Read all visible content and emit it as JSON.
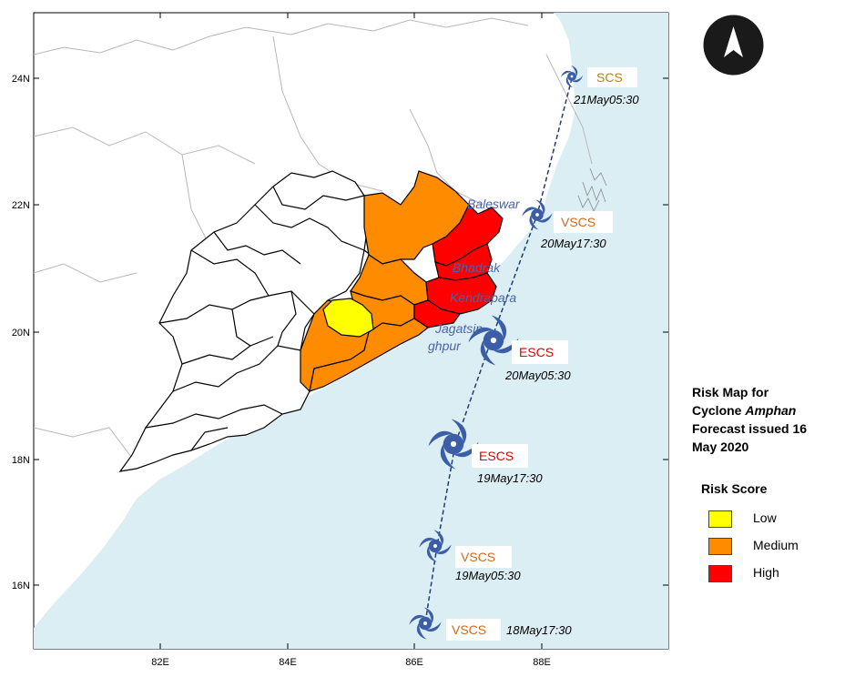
{
  "title": {
    "line1": "Risk Map for",
    "line2_prefix": "Cyclone ",
    "line2_italic": "Amphan",
    "line3": "Forecast issued 16",
    "line4": "May 2020"
  },
  "legend": {
    "title": "Risk Score",
    "items": [
      {
        "label": "Low",
        "color": "#ffff00"
      },
      {
        "label": "Medium",
        "color": "#ff8c00"
      },
      {
        "label": "High",
        "color": "#ff0000"
      }
    ]
  },
  "axes": {
    "x_ticks": [
      "82E",
      "84E",
      "86E",
      "88E"
    ],
    "y_ticks": [
      "24N",
      "22N",
      "20N",
      "18N",
      "16N"
    ]
  },
  "track": [
    {
      "category": "SCS",
      "time": "21May05:30",
      "cat_color": "#b8860b"
    },
    {
      "category": "VSCS",
      "time": "20May17:30",
      "cat_color": "#d2691e"
    },
    {
      "category": "ESCS",
      "time": "20May05:30",
      "cat_color": "#e00000"
    },
    {
      "category": "ESCS",
      "time": "19May17:30",
      "cat_color": "#e00000"
    },
    {
      "category": "VSCS",
      "time": "19May05:30",
      "cat_color": "#d2691e"
    },
    {
      "category": "VSCS",
      "time": "18May17:30",
      "cat_color": "#d2691e"
    }
  ],
  "districts": {
    "baleswar": "Baleswar",
    "bhadrak": "Bhadrak",
    "kendrapara": "Kendrapara",
    "jagatsinghpur_1": "Jagatsin",
    "jagatsinghpur_2": "ghpur"
  },
  "colors": {
    "sea": "#dbeef4",
    "land": "#ffffff",
    "cyclone": "#3c5ea8",
    "track": "#1f3d7a"
  },
  "icons": {
    "north_arrow": "north-arrow-icon",
    "cyclone": "cyclone-icon"
  }
}
